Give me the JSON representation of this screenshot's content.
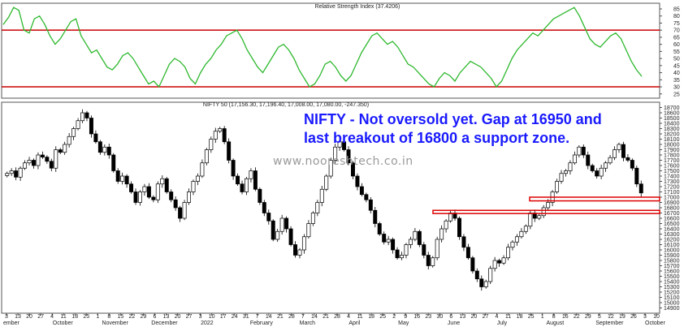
{
  "annotation": {
    "line1": "NIFTY - Not oversold yet. Gap at 16950 and",
    "line2": "last breakout of 16800 a support zone."
  },
  "watermark": "www.nooreshtech.co.in",
  "chart_data": [
    {
      "type": "line",
      "title": "Relative Strength Index (37.4206)",
      "yticks": [
        25,
        30,
        35,
        40,
        45,
        50,
        55,
        60,
        65,
        70,
        75,
        80,
        85
      ],
      "ylim": [
        22,
        89
      ],
      "reference_lines": [
        70,
        30
      ],
      "reference_color": "#cc0000",
      "line_color": "#2db82d",
      "grid": false,
      "values": [
        74,
        79,
        86,
        84,
        70,
        68,
        78,
        80,
        74,
        66,
        60,
        64,
        70,
        76,
        78,
        66,
        60,
        54,
        56,
        50,
        44,
        42,
        46,
        52,
        54,
        50,
        44,
        38,
        32,
        34,
        30,
        38,
        46,
        50,
        48,
        44,
        36,
        32,
        40,
        46,
        50,
        56,
        60,
        66,
        68,
        70,
        64,
        56,
        50,
        44,
        40,
        46,
        52,
        58,
        60,
        56,
        50,
        42,
        36,
        30,
        32,
        38,
        46,
        48,
        44,
        38,
        34,
        38,
        46,
        54,
        60,
        66,
        68,
        64,
        60,
        62,
        58,
        52,
        46,
        44,
        40,
        36,
        32,
        30,
        36,
        40,
        38,
        34,
        40,
        44,
        48,
        46,
        44,
        40,
        36,
        30,
        34,
        42,
        50,
        56,
        60,
        64,
        68,
        66,
        70,
        74,
        78,
        80,
        82,
        84,
        86,
        80,
        72,
        64,
        60,
        58,
        62,
        66,
        68,
        64,
        56,
        48,
        42,
        37.4
      ]
    },
    {
      "type": "candlestick",
      "title": "NIFTY 50 (17,156.30, 17,196.40, 17,008.00, 17,080.00, -247.350)",
      "yticks": [
        14900,
        15000,
        15100,
        15200,
        15300,
        15400,
        15500,
        15600,
        15700,
        15800,
        15900,
        16000,
        16100,
        16200,
        16300,
        16400,
        16500,
        16600,
        16700,
        16800,
        16900,
        17000,
        17100,
        17200,
        17300,
        17400,
        17500,
        17600,
        17700,
        17800,
        17900,
        18000,
        18100,
        18200,
        18300,
        18400,
        18500,
        18600,
        18700
      ],
      "ylim": [
        14800,
        18800
      ],
      "x_tick_labels": [
        "3",
        "13",
        "20",
        "27",
        "4",
        "11",
        "18",
        "25",
        "1",
        "8",
        "15",
        "22",
        "29",
        "6",
        "13",
        "20",
        "27",
        "3",
        "10",
        "17",
        "24",
        "31",
        "7",
        "14",
        "21",
        "28",
        "7",
        "14",
        "21",
        "28",
        "4",
        "11",
        "18",
        "25",
        "2",
        "9",
        "16",
        "23",
        "30",
        "6",
        "13",
        "20",
        "27",
        "4",
        "11",
        "18",
        "25",
        "1",
        "8",
        "16",
        "22",
        "29",
        "5",
        "12",
        "19",
        "26",
        "3",
        "10"
      ],
      "month_labels": [
        "ember",
        "October",
        "November",
        "December",
        "2022",
        "February",
        "March",
        "April",
        "May",
        "June",
        "July",
        "August",
        "September",
        "October"
      ],
      "closes": [
        17450,
        17500,
        17380,
        17550,
        17650,
        17700,
        17600,
        17800,
        17760,
        17680,
        17550,
        17900,
        17850,
        18000,
        18150,
        18300,
        18450,
        18600,
        18500,
        18200,
        18050,
        17850,
        17950,
        17800,
        17500,
        17300,
        17400,
        17250,
        17100,
        16900,
        17100,
        17200,
        17000,
        16950,
        17250,
        17350,
        17100,
        16950,
        16800,
        16600,
        16900,
        17100,
        17300,
        17400,
        17650,
        17900,
        18100,
        18250,
        18300,
        18050,
        17700,
        17400,
        17250,
        17100,
        17350,
        17500,
        17150,
        16900,
        16700,
        16550,
        16200,
        16350,
        16600,
        16400,
        16100,
        15900,
        16000,
        16250,
        16500,
        16700,
        16900,
        17150,
        17400,
        17700,
        17950,
        18050,
        17900,
        17650,
        17400,
        17200,
        17050,
        16950,
        16750,
        16500,
        16300,
        16150,
        16200,
        16000,
        15850,
        15900,
        16100,
        16200,
        16350,
        16100,
        15900,
        15700,
        15850,
        16200,
        16400,
        16550,
        16700,
        16600,
        16250,
        16050,
        15850,
        15600,
        15450,
        15300,
        15400,
        15650,
        15800,
        15750,
        15850,
        16050,
        16150,
        16250,
        16350,
        16450,
        16700,
        16600,
        16650,
        16800,
        16900,
        17100,
        17300,
        17450,
        17500,
        17650,
        17800,
        17950,
        17800,
        17600,
        17500,
        17400,
        17550,
        17650,
        17750,
        17900,
        18000,
        17750,
        17700,
        17550,
        17250,
        17080
      ]
    }
  ]
}
